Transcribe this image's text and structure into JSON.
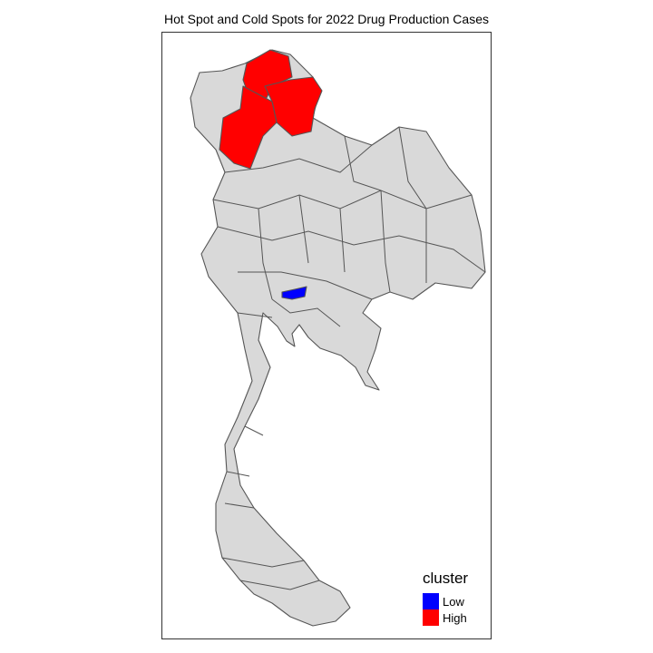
{
  "map": {
    "title": "Hot Spot and Cold Spots for 2022 Drug Production Cases",
    "base_fill": "#d9d9d9",
    "border_color": "#555555",
    "highlighted": [
      {
        "region": "northern-upper",
        "cluster": "High"
      },
      {
        "region": "northern-east",
        "cluster": "High"
      },
      {
        "region": "northern-west",
        "cluster": "High"
      },
      {
        "region": "central-small",
        "cluster": "Low"
      }
    ]
  },
  "legend": {
    "title": "cluster",
    "items": [
      {
        "label": "Low",
        "color": "#0000ff"
      },
      {
        "label": "High",
        "color": "#ff0000"
      }
    ]
  }
}
